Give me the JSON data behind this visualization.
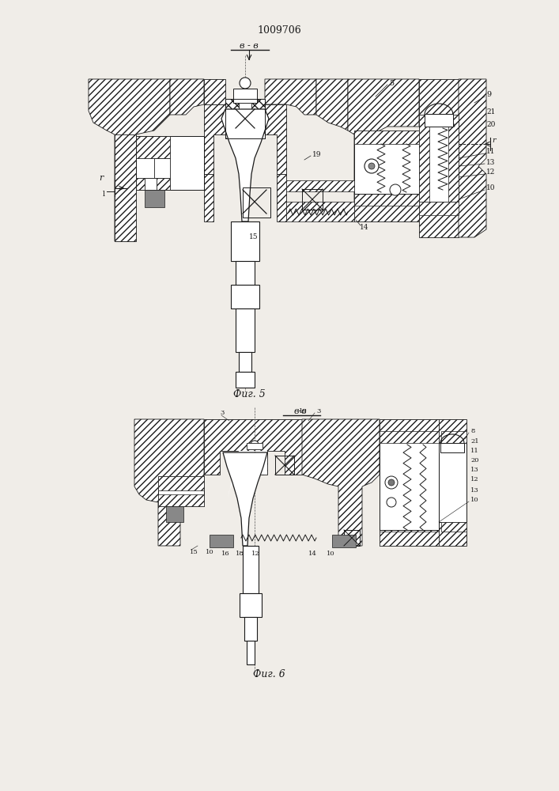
{
  "title": "1009706",
  "background_color": "#f0ede8",
  "fig_width": 7.07,
  "fig_height": 10.0,
  "dpi": 100,
  "top_label": "в - в",
  "bottom_label": "в-в",
  "fig5_caption": "Фиг. 5",
  "fig6_caption": "Фиг. 6",
  "line_color": "#1a1a1a"
}
